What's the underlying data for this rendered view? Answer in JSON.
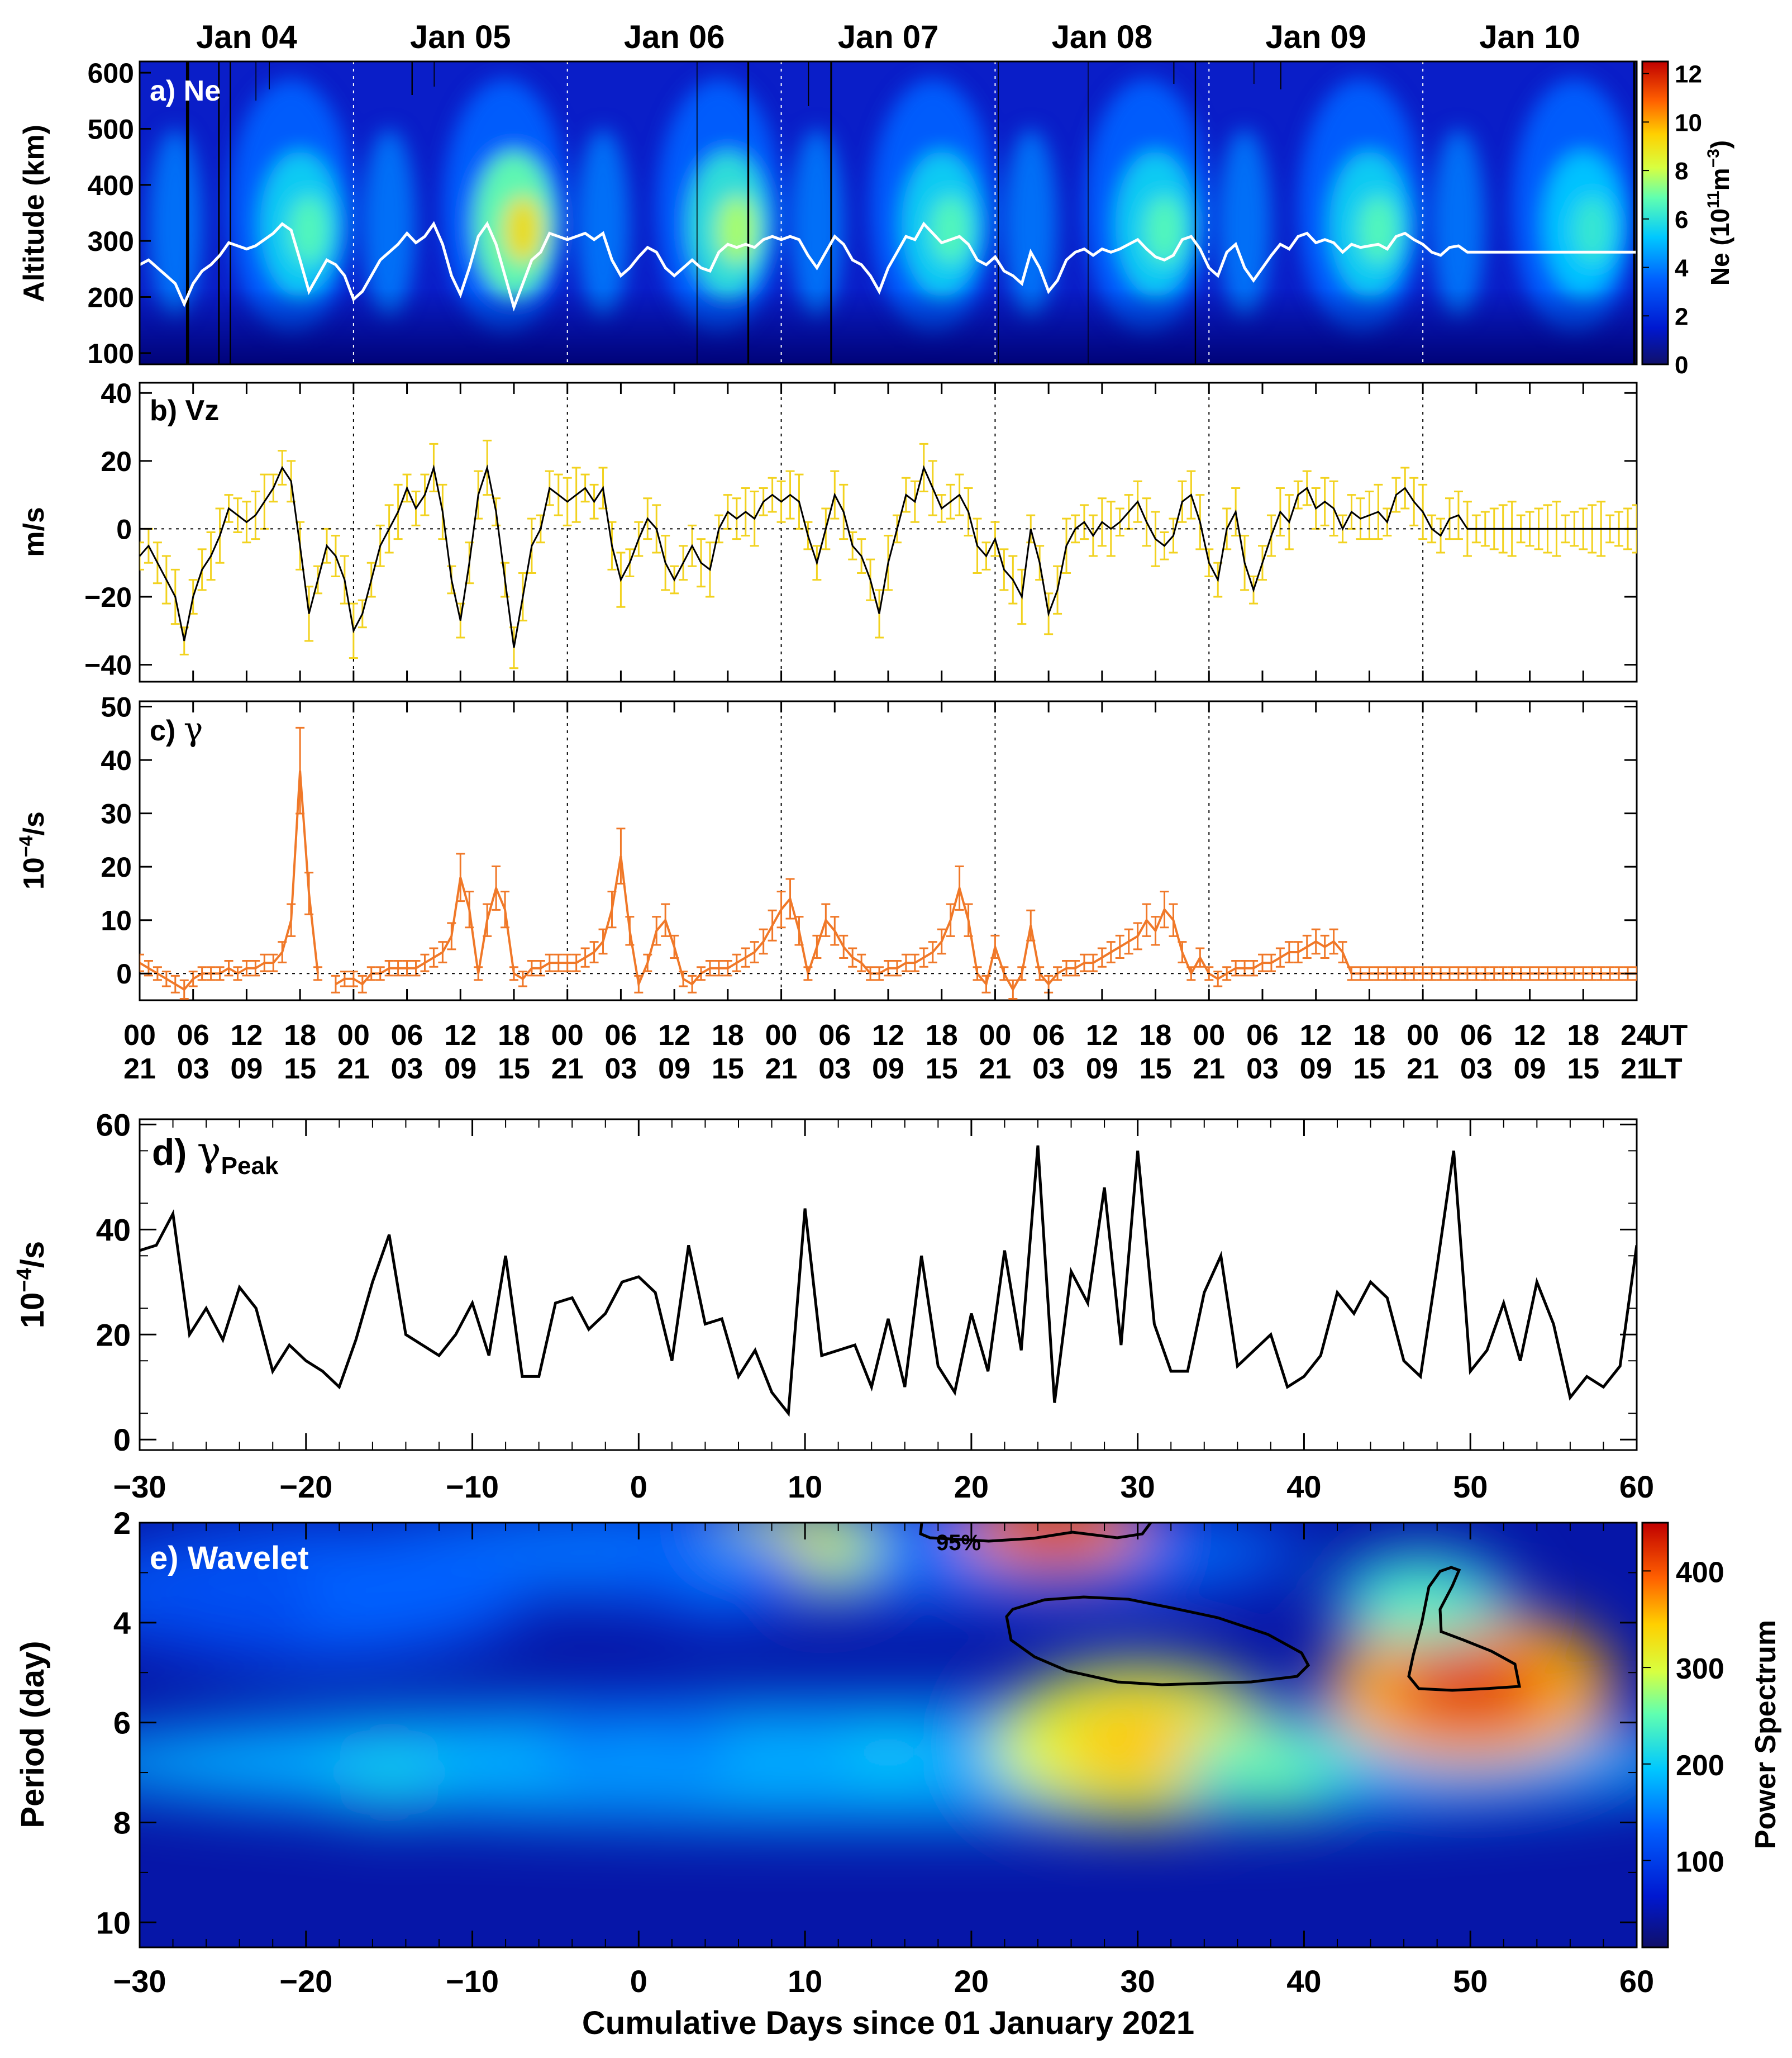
{
  "chart_data": [
    {
      "panel": "a",
      "type": "heatmap",
      "label": "a) Ne",
      "ylabel": "Altitude (km)",
      "y_ticks": [
        "600",
        "500",
        "400",
        "300",
        "200",
        "100"
      ],
      "ylim": [
        80,
        620
      ],
      "date_labels": [
        "Jan 04",
        "Jan 05",
        "Jan 06",
        "Jan 07",
        "Jan 08",
        "Jan 09",
        "Jan 10"
      ],
      "colorbar": {
        "label_prefix": "Ne (10",
        "label_sup1": "11",
        "label_unit": "m",
        "label_sup2": "−3",
        "label_suffix": ")",
        "ticks": [
          "0",
          "2",
          "4",
          "6",
          "8",
          "10",
          "12"
        ],
        "range": [
          0,
          12.5
        ]
      },
      "hmF2_line_color": "#ffffff"
    },
    {
      "panel": "b",
      "type": "line",
      "label": "b) Vz",
      "ylabel": "m/s",
      "y_ticks": [
        "40",
        "20",
        "0",
        "−20",
        "−40"
      ],
      "ylim": [
        -45,
        43
      ],
      "x_range_hours": [
        0,
        168
      ],
      "errorbar_color": "#f2d21f",
      "line_color": "#000000",
      "points_x_hours": [
        0,
        1,
        2,
        3,
        4,
        5,
        6,
        7,
        8,
        9,
        10,
        11,
        12,
        13,
        14,
        15,
        16,
        17,
        18,
        19,
        20,
        21,
        22,
        23,
        24,
        25,
        26,
        27,
        28,
        29,
        30,
        31,
        32,
        33,
        34,
        35,
        36,
        37,
        38,
        39,
        40,
        41,
        42,
        43,
        44,
        45,
        46,
        47,
        48,
        49,
        50,
        51,
        52,
        53,
        54,
        55,
        56,
        57,
        58,
        59,
        60,
        61,
        62,
        63,
        64,
        65,
        66,
        67,
        68,
        69,
        70,
        71,
        72,
        73,
        74,
        75,
        76,
        77,
        78,
        79,
        80,
        81,
        82,
        83,
        84,
        85,
        86,
        87,
        88,
        89,
        90,
        91,
        92,
        93,
        94,
        95,
        96,
        97,
        98,
        99,
        100,
        101,
        102,
        103,
        104,
        105,
        106,
        107,
        108,
        109,
        110,
        111,
        112,
        113,
        114,
        115,
        116,
        117,
        118,
        119,
        120,
        121,
        122,
        123,
        124,
        125,
        126,
        127,
        128,
        129,
        130,
        131,
        132,
        133,
        134,
        135,
        136,
        137,
        138,
        139,
        140,
        141,
        142,
        143,
        144,
        145,
        146,
        147,
        148,
        149,
        150,
        151,
        152,
        153,
        154,
        155,
        156,
        157,
        158,
        159,
        160,
        161,
        162,
        163,
        164,
        165,
        166,
        167,
        168
      ],
      "values": [
        -8,
        -5,
        -10,
        -15,
        -20,
        -33,
        -20,
        -12,
        -8,
        -2,
        6,
        4,
        2,
        4,
        8,
        12,
        18,
        14,
        -5,
        -25,
        -15,
        -5,
        -8,
        -15,
        -30,
        -25,
        -15,
        -5,
        0,
        5,
        12,
        6,
        10,
        18,
        5,
        -15,
        -27,
        -10,
        10,
        18,
        5,
        -15,
        -35,
        -20,
        -5,
        0,
        12,
        10,
        8,
        10,
        12,
        8,
        12,
        -5,
        -15,
        -10,
        -3,
        3,
        0,
        -10,
        -15,
        -10,
        -5,
        -10,
        -12,
        0,
        5,
        3,
        5,
        3,
        8,
        10,
        8,
        10,
        8,
        -2,
        -10,
        0,
        10,
        5,
        -5,
        -8,
        -15,
        -25,
        -10,
        0,
        10,
        8,
        18,
        12,
        6,
        8,
        10,
        5,
        -5,
        -8,
        -3,
        -12,
        -15,
        -20,
        0,
        -10,
        -25,
        -18,
        -5,
        0,
        2,
        -2,
        2,
        0,
        2,
        5,
        8,
        2,
        -3,
        -5,
        -2,
        8,
        10,
        2,
        -10,
        -15,
        0,
        5,
        -10,
        -18,
        -10,
        -2,
        5,
        2,
        10,
        12,
        6,
        8,
        6,
        0,
        5,
        3,
        4,
        5,
        2,
        10,
        12,
        8,
        5,
        0,
        -2,
        3,
        4,
        0,
        0,
        0,
        0,
        0,
        0,
        0,
        0,
        0,
        0,
        0,
        0,
        0,
        0,
        0,
        0,
        0,
        0,
        0,
        0
      ]
    },
    {
      "panel": "c",
      "type": "line",
      "label_prefix": "c) ",
      "label_symbol": "γ",
      "ylabel_main": "10",
      "ylabel_sup": "−4",
      "ylabel_suffix": "/s",
      "y_ticks": [
        "50",
        "40",
        "30",
        "20",
        "10",
        "0"
      ],
      "ylim": [
        -5,
        51
      ],
      "x_range_hours": [
        0,
        168
      ],
      "errorbar_color": "#f07828",
      "line_color": "#f07828",
      "points_x_hours": [
        0,
        1,
        2,
        3,
        4,
        5,
        6,
        7,
        8,
        9,
        10,
        11,
        12,
        13,
        14,
        15,
        16,
        17,
        18,
        19,
        20,
        21,
        22,
        23,
        24,
        25,
        26,
        27,
        28,
        29,
        30,
        31,
        32,
        33,
        34,
        35,
        36,
        37,
        38,
        39,
        40,
        41,
        42,
        43,
        44,
        45,
        46,
        47,
        48,
        49,
        50,
        51,
        52,
        53,
        54,
        55,
        56,
        57,
        58,
        59,
        60,
        61,
        62,
        63,
        64,
        65,
        66,
        67,
        68,
        69,
        70,
        71,
        72,
        73,
        74,
        75,
        76,
        77,
        78,
        79,
        80,
        81,
        82,
        83,
        84,
        85,
        86,
        87,
        88,
        89,
        90,
        91,
        92,
        93,
        94,
        95,
        96,
        97,
        98,
        99,
        100,
        101,
        102,
        103,
        104,
        105,
        106,
        107,
        108,
        109,
        110,
        111,
        112,
        113,
        114,
        115,
        116,
        117,
        118,
        119,
        120,
        121,
        122,
        123,
        124,
        125,
        126,
        127,
        128,
        129,
        130,
        131,
        132,
        133,
        134,
        135,
        136,
        137,
        138,
        139,
        140,
        141,
        142,
        143,
        144,
        145,
        146,
        147,
        148,
        149,
        150,
        151,
        152,
        153,
        154,
        155,
        156,
        157,
        158,
        159,
        160,
        161,
        162,
        163,
        164,
        165,
        166,
        167,
        168
      ],
      "values": [
        2,
        1,
        0,
        -1,
        -2,
        -3,
        -1,
        0,
        0,
        0,
        1,
        0,
        1,
        1,
        2,
        2,
        4,
        10,
        38,
        15,
        0,
        null,
        -2,
        -1,
        -1,
        -2,
        0,
        0,
        1,
        1,
        1,
        1,
        2,
        3,
        4,
        7,
        18,
        12,
        0,
        10,
        16,
        12,
        0,
        -1,
        1,
        1,
        2,
        2,
        2,
        2,
        3,
        4,
        6,
        12,
        22,
        8,
        -2,
        2,
        8,
        10,
        5,
        -1,
        -2,
        0,
        1,
        1,
        1,
        2,
        3,
        4,
        6,
        9,
        12,
        14,
        8,
        0,
        5,
        10,
        8,
        5,
        3,
        2,
        0,
        0,
        1,
        1,
        2,
        2,
        3,
        4,
        6,
        10,
        16,
        10,
        0,
        -2,
        5,
        0,
        -3,
        0,
        9,
        0,
        -2,
        0,
        1,
        1,
        2,
        2,
        3,
        4,
        5,
        6,
        7,
        10,
        8,
        12,
        10,
        4,
        0,
        3,
        0,
        -1,
        0,
        1,
        1,
        1,
        2,
        2,
        3,
        4,
        4,
        5,
        6,
        5,
        6,
        4,
        0,
        0,
        0,
        0,
        0,
        0,
        0,
        0,
        0,
        0,
        0,
        0,
        0,
        0,
        0,
        0,
        0,
        0,
        0,
        0,
        0,
        0,
        0,
        0,
        0,
        0,
        0,
        0,
        0,
        0,
        0,
        0,
        0
      ]
    },
    {
      "panel": "time_axis",
      "type": "table",
      "ut_ticks": [
        "00",
        "06",
        "12",
        "18",
        "00",
        "06",
        "12",
        "18",
        "00",
        "06",
        "12",
        "18",
        "00",
        "06",
        "12",
        "18",
        "00",
        "06",
        "12",
        "18",
        "00",
        "06",
        "12",
        "18",
        "00",
        "06",
        "12",
        "18",
        "24"
      ],
      "lt_ticks": [
        "21",
        "03",
        "09",
        "15",
        "21",
        "03",
        "09",
        "15",
        "21",
        "03",
        "09",
        "15",
        "21",
        "03",
        "09",
        "15",
        "21",
        "03",
        "09",
        "15",
        "21",
        "03",
        "09",
        "15",
        "21",
        "03",
        "09",
        "15",
        "21"
      ],
      "ut_label": "UT",
      "lt_label": "LT"
    },
    {
      "panel": "d",
      "type": "line",
      "label_prefix": "d) ",
      "label_symbol": "γ",
      "label_sub": "Peak",
      "ylabel_main": "10",
      "ylabel_sup": "−4",
      "ylabel_suffix": "/s",
      "y_ticks": [
        "60",
        "40",
        "20",
        "0"
      ],
      "ylim": [
        -2,
        61
      ],
      "xlim": [
        -30,
        60
      ],
      "x_ticks": [
        "−30",
        "−20",
        "−10",
        "0",
        "10",
        "20",
        "30",
        "40",
        "50",
        "60"
      ],
      "x": [
        -30,
        -29,
        -28,
        -27,
        -26,
        -25,
        -24,
        -23,
        -22,
        -21,
        -20,
        -19,
        -18,
        -17,
        -16,
        -15,
        -14,
        -13,
        -12,
        -11,
        -10,
        -9,
        -8,
        -7,
        -6,
        -5,
        -4,
        -3,
        -2,
        -1,
        0,
        1,
        2,
        3,
        4,
        5,
        6,
        7,
        8,
        9,
        10,
        11,
        12,
        13,
        14,
        15,
        16,
        17,
        18,
        19,
        20,
        21,
        22,
        23,
        24,
        25,
        26,
        27,
        28,
        29,
        30,
        31,
        32,
        33,
        34,
        35,
        36,
        37,
        38,
        39,
        40,
        41,
        42,
        43,
        44,
        45,
        46,
        47,
        48,
        49,
        50,
        51,
        52,
        53,
        54,
        55,
        56,
        57,
        58,
        59,
        60
      ],
      "values": [
        36,
        37,
        43,
        20,
        25,
        19,
        29,
        25,
        13,
        18,
        15,
        13,
        10,
        19,
        30,
        39,
        20,
        18,
        16,
        20,
        26,
        16,
        35,
        12,
        12,
        26,
        27,
        21,
        24,
        30,
        31,
        28,
        15,
        37,
        22,
        23,
        12,
        17,
        9,
        5,
        44,
        16,
        17,
        18,
        10,
        23,
        10,
        35,
        14,
        9,
        24,
        13,
        36,
        17,
        56,
        7,
        32,
        26,
        48,
        18,
        55,
        22,
        13,
        13,
        28,
        35,
        14,
        17,
        20,
        10,
        12,
        16,
        28,
        24,
        30,
        27,
        15,
        12,
        33,
        55,
        13,
        17,
        26,
        15,
        30,
        22,
        8,
        12,
        10,
        14,
        37
      ],
      "line_color": "#000000"
    },
    {
      "panel": "e",
      "type": "heatmap",
      "label": "e) Wavelet",
      "ylabel": "Period (day)",
      "xlabel": "Cumulative Days since 01 January 2021",
      "xlim": [
        -30,
        60
      ],
      "ylim": [
        2,
        10.5
      ],
      "x_ticks": [
        "−30",
        "−20",
        "−10",
        "0",
        "10",
        "20",
        "30",
        "40",
        "50",
        "60"
      ],
      "y_ticks": [
        "2",
        "4",
        "6",
        "8",
        "10"
      ],
      "significance_label": "95%",
      "colorbar": {
        "label": "Power Spectrum",
        "ticks": [
          "100",
          "200",
          "300",
          "400"
        ],
        "range": [
          10,
          450
        ]
      },
      "blobs": [
        {
          "day": 30,
          "period": 6.4,
          "power": 350
        },
        {
          "day": 50,
          "period": 5.3,
          "power": 420
        },
        {
          "day": 25,
          "period": 2.1,
          "power": 440
        },
        {
          "day": 9,
          "period": 2.5,
          "power": 330
        },
        {
          "day": -15,
          "period": 7.0,
          "power": 210
        },
        {
          "day": 0,
          "period": 6.5,
          "power": 170
        },
        {
          "day": 15,
          "period": 6.6,
          "power": 200
        },
        {
          "day": 38,
          "period": 7.0,
          "power": 260
        },
        {
          "day": 47,
          "period": 3.5,
          "power": 250
        },
        {
          "day": 5,
          "period": 3.0,
          "power": 150
        },
        {
          "day": -25,
          "period": 3.6,
          "power": 120
        }
      ]
    }
  ]
}
